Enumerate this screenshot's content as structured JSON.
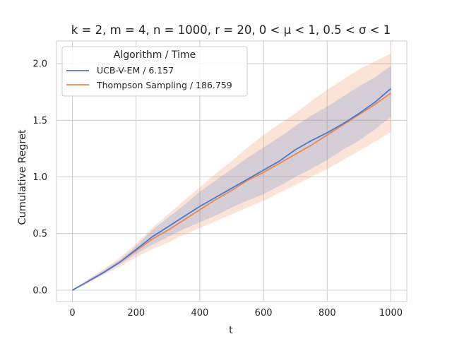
{
  "chart_data": {
    "type": "line",
    "title": "k = 2,  m = 4,  n = 1000,  r = 20,  0 < μ < 1,  0.5 < σ < 1",
    "xlabel": "t",
    "ylabel": "Cumulative Regret",
    "xlim": [
      -50,
      1050
    ],
    "ylim": [
      -0.1,
      2.2
    ],
    "xticks": [
      0,
      200,
      400,
      600,
      800,
      1000
    ],
    "yticks": [
      0.0,
      0.5,
      1.0,
      1.5,
      2.0
    ],
    "xtick_labels": [
      "0",
      "200",
      "400",
      "600",
      "800",
      "1000"
    ],
    "ytick_labels": [
      "0.0",
      "0.5",
      "1.0",
      "1.5",
      "2.0"
    ],
    "grid": true,
    "legend": {
      "title": "Algorithm / Time",
      "placement": "upper-left"
    },
    "x": [
      0,
      50,
      100,
      150,
      200,
      250,
      300,
      350,
      400,
      450,
      500,
      550,
      600,
      650,
      700,
      750,
      800,
      850,
      900,
      950,
      1000
    ],
    "series": [
      {
        "name": "UCB-V-EM / 6.157",
        "color": "#4878d0",
        "values": [
          0.0,
          0.08,
          0.16,
          0.25,
          0.36,
          0.47,
          0.56,
          0.65,
          0.74,
          0.82,
          0.9,
          0.98,
          1.06,
          1.14,
          1.24,
          1.32,
          1.39,
          1.47,
          1.56,
          1.66,
          1.78
        ],
        "lower": [
          0.0,
          0.07,
          0.15,
          0.23,
          0.32,
          0.4,
          0.47,
          0.54,
          0.6,
          0.66,
          0.73,
          0.79,
          0.85,
          0.92,
          1.0,
          1.07,
          1.15,
          1.24,
          1.32,
          1.42,
          1.53
        ],
        "upper": [
          0.0,
          0.09,
          0.18,
          0.27,
          0.39,
          0.53,
          0.64,
          0.75,
          0.87,
          0.97,
          1.07,
          1.17,
          1.26,
          1.35,
          1.45,
          1.54,
          1.62,
          1.71,
          1.8,
          1.88,
          1.98
        ]
      },
      {
        "name": "Thompson Sampling / 186.759",
        "color": "#ee854a",
        "values": [
          0.0,
          0.08,
          0.16,
          0.25,
          0.35,
          0.45,
          0.53,
          0.62,
          0.71,
          0.8,
          0.88,
          0.97,
          1.04,
          1.12,
          1.2,
          1.28,
          1.37,
          1.46,
          1.55,
          1.64,
          1.74
        ],
        "lower": [
          0.0,
          0.06,
          0.14,
          0.21,
          0.29,
          0.36,
          0.42,
          0.49,
          0.55,
          0.61,
          0.67,
          0.73,
          0.79,
          0.86,
          0.93,
          1.0,
          1.07,
          1.15,
          1.23,
          1.31,
          1.4
        ],
        "upper": [
          0.0,
          0.1,
          0.19,
          0.29,
          0.41,
          0.55,
          0.67,
          0.79,
          0.91,
          1.03,
          1.14,
          1.26,
          1.37,
          1.47,
          1.56,
          1.67,
          1.77,
          1.86,
          1.95,
          2.02,
          2.09
        ]
      }
    ]
  }
}
